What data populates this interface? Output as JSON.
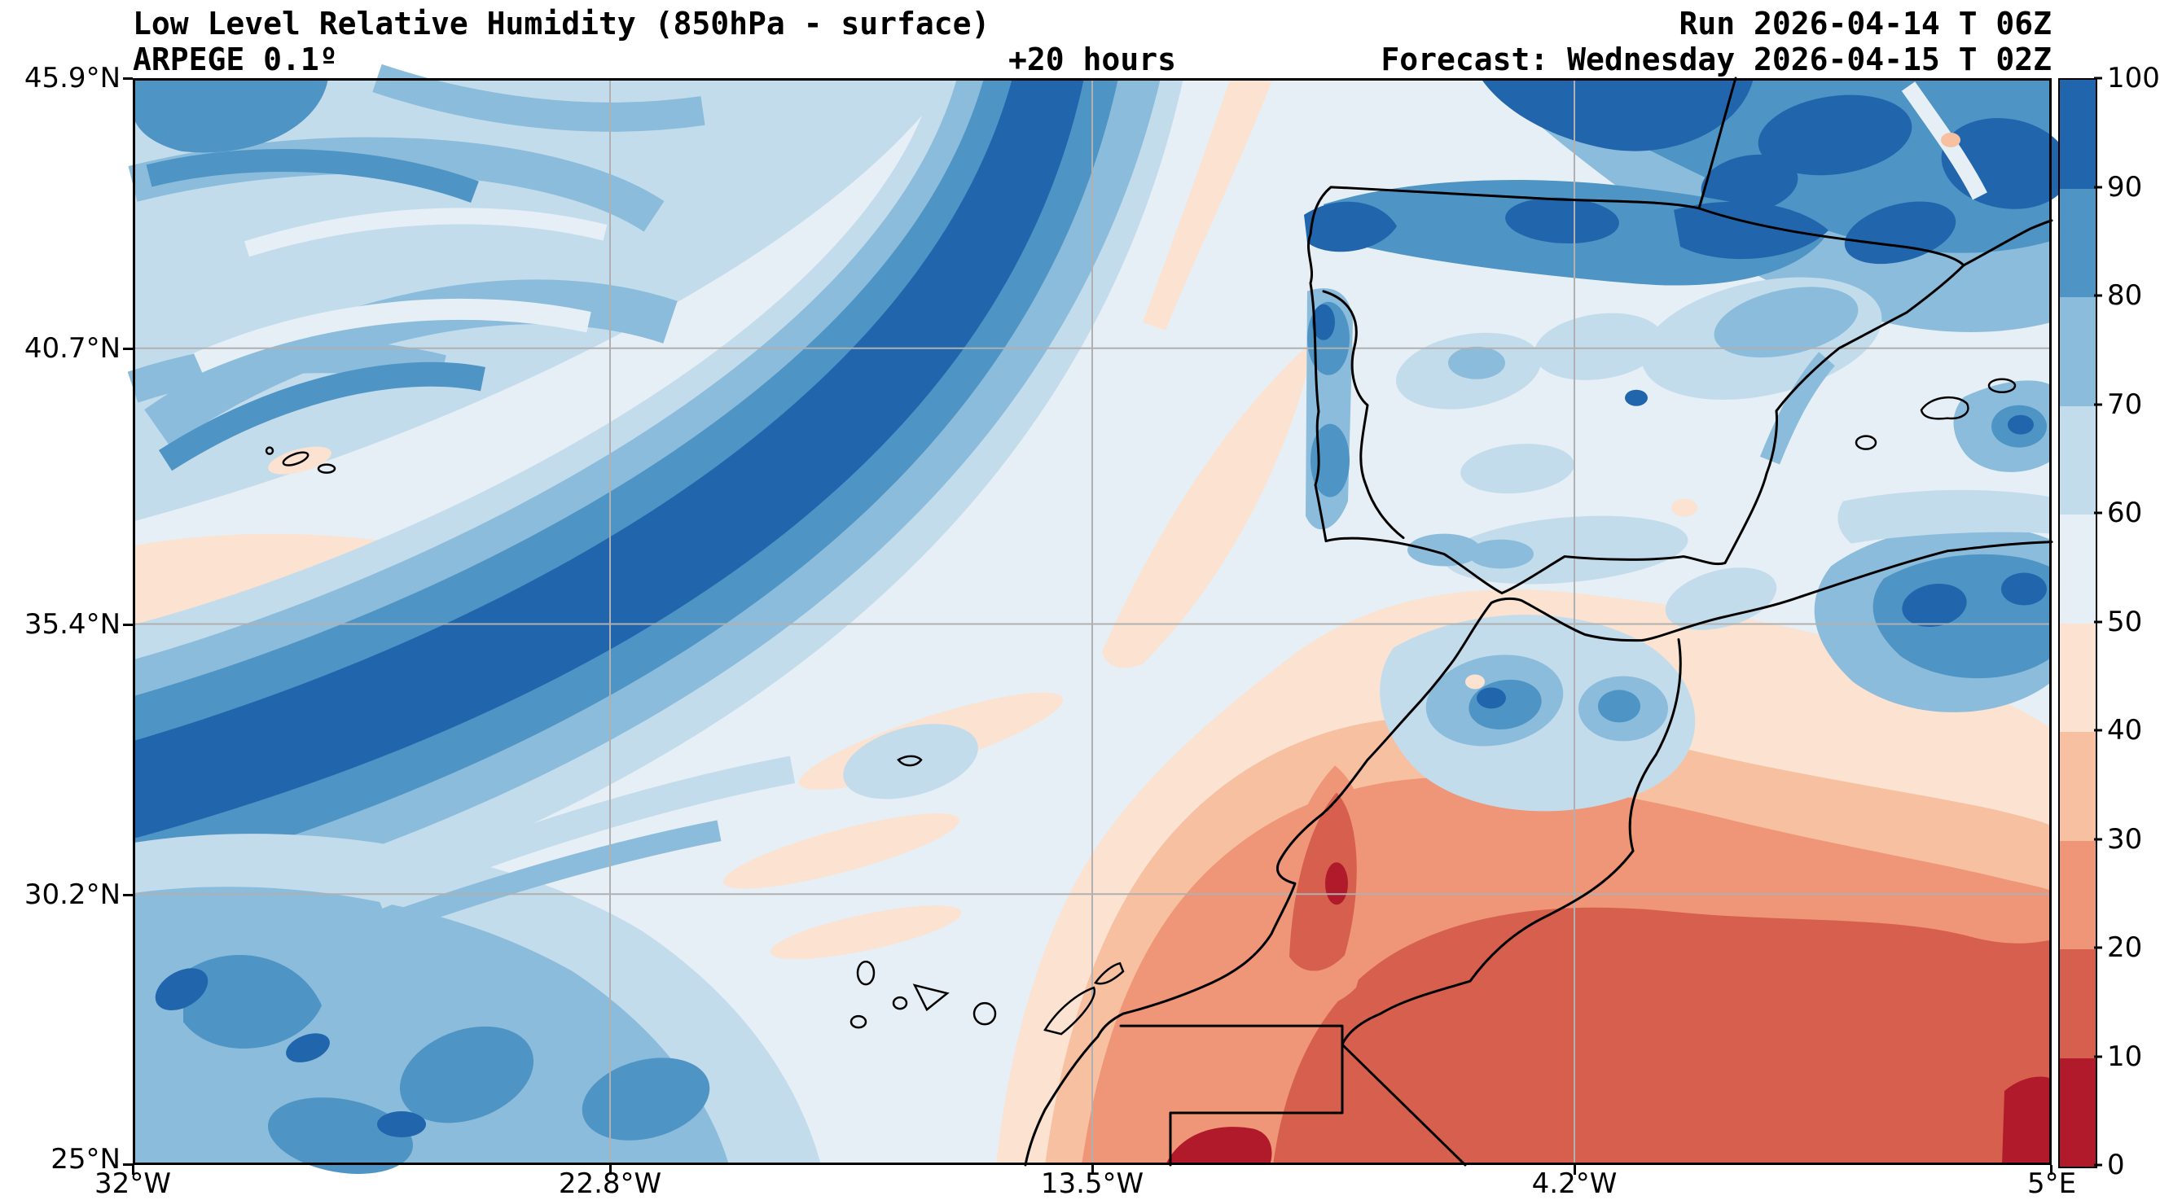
{
  "header": {
    "title": "Low Level Relative Humidity (850hPa - surface)",
    "model": "ARPEGE 0.1º",
    "lead_time": "+20 hours",
    "run": "Run 2026-04-14 T 06Z",
    "forecast": "Forecast: Wednesday 2026-04-15 T 02Z"
  },
  "axes": {
    "y_ticks": [
      "45.9°N",
      "40.7°N",
      "35.4°N",
      "30.2°N",
      "25°N"
    ],
    "x_ticks": [
      "32°W",
      "22.8°W",
      "13.5°W",
      "4.2°W",
      "5°E"
    ]
  },
  "colorbar": {
    "tick_labels": [
      "100",
      "90",
      "80",
      "70",
      "60",
      "50",
      "40",
      "30",
      "20",
      "10",
      "0"
    ],
    "colors": [
      "#2166ac",
      "#4e94c5",
      "#8bbcdb",
      "#c3dcec",
      "#e6eff5",
      "#fbe2d1",
      "#f7c0a0",
      "#ee9677",
      "#d6604d",
      "#b11a2b"
    ]
  },
  "chart_data": {
    "type": "heatmap",
    "title": "Low Level Relative Humidity (850hPa - surface)",
    "variable": "relative humidity",
    "units": "%",
    "model": "ARPEGE 0.1º",
    "run": "2026-04-14 T 06Z",
    "forecast_valid": "Wednesday 2026-04-15 T 02Z",
    "lead_hours": 20,
    "xlabel": "",
    "ylabel": "",
    "x_axis": {
      "tick_labels": [
        "32°W",
        "22.8°W",
        "13.5°W",
        "4.2°W",
        "5°E"
      ],
      "range_deg_lon": [
        -32,
        5
      ]
    },
    "y_axis": {
      "tick_labels": [
        "45.9°N",
        "40.7°N",
        "35.4°N",
        "30.2°N",
        "25°N"
      ],
      "range_deg_lat": [
        25,
        45.9
      ]
    },
    "grid": true,
    "legend_position": "right colorbar",
    "colorbar_levels": [
      0,
      10,
      20,
      30,
      40,
      50,
      60,
      70,
      80,
      90,
      100
    ],
    "colorbar_colors": [
      "#b11a2b",
      "#d6604d",
      "#ee9677",
      "#f7c0a0",
      "#fbe2d1",
      "#e6eff5",
      "#c3dcec",
      "#8bbcdb",
      "#4e94c5",
      "#2166ac"
    ],
    "map_overlays": [
      "coastlines of Iberia, France, NW Africa",
      "country borders Morocco/Algeria/Western Sahara/Mauritania",
      "Canary Islands",
      "Madeira",
      "Azores",
      "Balearic Islands"
    ],
    "regions_estimated_rh_percent": [
      {
        "area": "NE Atlantic swirls (upper left quadrant)",
        "rh": "60-90"
      },
      {
        "area": "Narrow SW-NE frontal band across Atlantic toward top center",
        "rh": "90-100"
      },
      {
        "area": "Band flanks around frontal core",
        "rh": "70-90"
      },
      {
        "area": "Central subtropical Atlantic (center of map)",
        "rh": "40-60"
      },
      {
        "area": "Lower-left Atlantic cellular swirls",
        "rh": "70-100"
      },
      {
        "area": "Galicia / northern Spain / Pyrenees / SW France",
        "rh": "80-100"
      },
      {
        "area": "Bay of Biscay and top-right France",
        "rh": "80-100"
      },
      {
        "area": "Central Iberia",
        "rh": "50-70"
      },
      {
        "area": "West of Portugal coastal streaks",
        "rh": "40-50"
      },
      {
        "area": "Atlas mountains, Morocco",
        "rh": "60-100"
      },
      {
        "area": "NE Algeria (right edge mid)",
        "rh": "80-100"
      },
      {
        "area": "Moroccan south coast tongue",
        "rh": "10-30"
      },
      {
        "area": "Sahara lower-right",
        "rh": "0-30"
      },
      {
        "area": "Canary Islands area",
        "rh": "40-60"
      }
    ]
  }
}
